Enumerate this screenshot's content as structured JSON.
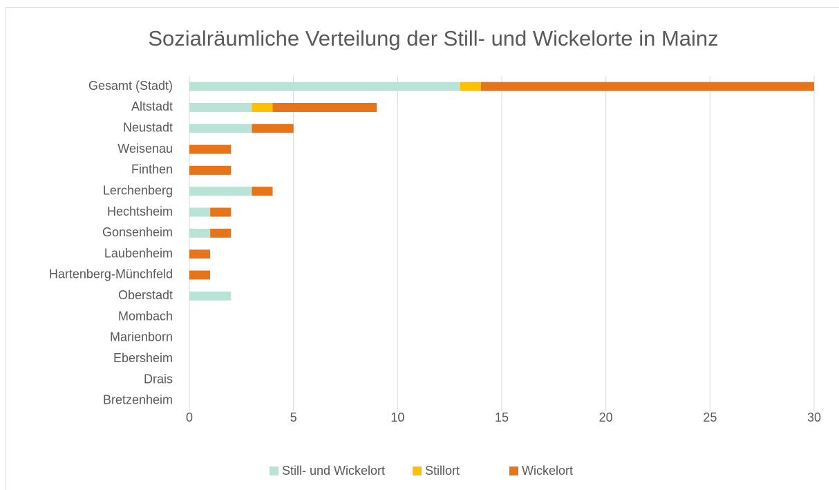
{
  "chart_data": {
    "type": "stacked-bar-horizontal",
    "title": "Sozialräumliche Verteilung der Still- und Wickelorte in Mainz",
    "categories": [
      "Gesamt (Stadt)",
      "Altstadt",
      "Neustadt",
      "Weisenau",
      "Finthen",
      "Lerchenberg",
      "Hechtsheim",
      "Gonsenheim",
      "Laubenheim",
      "Hartenberg-Münchfeld",
      "Oberstadt",
      "Mombach",
      "Marienborn",
      "Ebersheim",
      "Drais",
      "Bretzenheim"
    ],
    "series": [
      {
        "name": "Still- und Wickelort",
        "color": "#b9e3d6",
        "values": [
          13,
          3,
          3,
          0,
          0,
          3,
          1,
          1,
          0,
          0,
          2,
          0,
          0,
          0,
          0,
          0
        ]
      },
      {
        "name": "Stillort",
        "color": "#ffc000",
        "values": [
          1,
          1,
          0,
          0,
          0,
          0,
          0,
          0,
          0,
          0,
          0,
          0,
          0,
          0,
          0,
          0
        ]
      },
      {
        "name": "Wickelort",
        "color": "#e8741a",
        "values": [
          16,
          5,
          2,
          2,
          2,
          1,
          1,
          1,
          1,
          1,
          0,
          0,
          0,
          0,
          0,
          0
        ]
      }
    ],
    "xlim": [
      0,
      30
    ],
    "xticks": [
      0,
      5,
      10,
      15,
      20,
      25,
      30
    ],
    "grid": true,
    "legend": "bottom"
  }
}
